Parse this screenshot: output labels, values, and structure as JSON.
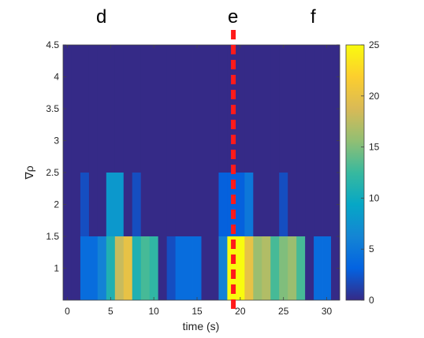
{
  "panel_labels": {
    "left": "d",
    "middle": "e",
    "right": "f"
  },
  "chart_data": {
    "type": "heatmap",
    "xlabel": "time (s)",
    "ylabel": "∇ρ",
    "xlim": [
      -0.5,
      31.5
    ],
    "ylim": [
      0.5,
      4.5
    ],
    "x_ticks": [
      0,
      5,
      10,
      15,
      20,
      25,
      30
    ],
    "y_ticks": [
      1,
      1.5,
      2,
      2.5,
      3,
      3.5,
      4,
      4.5
    ],
    "colorbar": {
      "min": 0,
      "max": 25,
      "ticks": [
        0,
        5,
        10,
        15,
        20,
        25
      ],
      "colormap": "parula"
    },
    "marker_line": {
      "x": 19.2,
      "color": "#ff1a1a",
      "style": "dashed"
    },
    "y_bands": [
      [
        0.5,
        1.5
      ],
      [
        1.5,
        2.5
      ],
      [
        2.5,
        4.5
      ]
    ],
    "x_bin_starts": [
      -0.5,
      0.5,
      1.5,
      2.5,
      3.5,
      4.5,
      5.5,
      6.5,
      7.5,
      8.5,
      9.5,
      10.5,
      11.5,
      12.5,
      13.5,
      14.5,
      15.5,
      16.5,
      17.5,
      18.5,
      19.5,
      20.5,
      21.5,
      22.5,
      23.5,
      24.5,
      25.5,
      26.5,
      27.5,
      28.5,
      29.5,
      30.5,
      31.5
    ],
    "values": [
      [
        0,
        0,
        4,
        4,
        6,
        11,
        18,
        20,
        11,
        13,
        12,
        0,
        2,
        4,
        4,
        4,
        0,
        0,
        6,
        25,
        25,
        20,
        16,
        17,
        13,
        15,
        16,
        13,
        0,
        4,
        4,
        0
      ],
      [
        0,
        0,
        2,
        0,
        0,
        8,
        8,
        0,
        2,
        0,
        0,
        0,
        0,
        0,
        0,
        0,
        0,
        0,
        3,
        3,
        3,
        5,
        0,
        0,
        0,
        2,
        0,
        0,
        0,
        0,
        0,
        0
      ],
      [
        0,
        0,
        0,
        0,
        0,
        0,
        0,
        0,
        0,
        0,
        0,
        0,
        0,
        0,
        0,
        0,
        0,
        0,
        0,
        0,
        0,
        0,
        0,
        0,
        0,
        0,
        0,
        0,
        0,
        0,
        0,
        0
      ]
    ]
  }
}
